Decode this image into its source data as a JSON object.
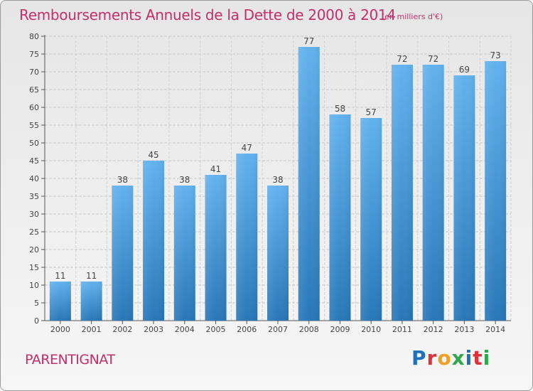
{
  "title": "Remboursements Annuels de la Dette de 2000 à 2014",
  "unit": "(en milliers d'€)",
  "place": "PARENTIGNAT",
  "logo_text": "Proxiti",
  "logo_colors": [
    "#1f6fbf",
    "#e0303a",
    "#f0a020",
    "#2ea84a",
    "#1f6fbf",
    "#e0303a",
    "#2ea84a"
  ],
  "colors": {
    "bar_light": "#5dadea",
    "bar_dark": "#2a7fc0",
    "title": "#c0306a",
    "grid": "#c8c8c8"
  },
  "chart_data": {
    "type": "bar",
    "categories": [
      "2000",
      "2001",
      "2002",
      "2003",
      "2004",
      "2005",
      "2006",
      "2007",
      "2008",
      "2009",
      "2010",
      "2011",
      "2012",
      "2013",
      "2014"
    ],
    "values": [
      11,
      11,
      38,
      45,
      38,
      41,
      47,
      38,
      77,
      58,
      57,
      72,
      72,
      69,
      73
    ],
    "title": "Remboursements Annuels de la Dette de 2000 à 2014",
    "xlabel": "",
    "ylabel": "",
    "ylim": [
      0,
      80
    ],
    "yticks": [
      0,
      5,
      10,
      15,
      20,
      25,
      30,
      35,
      40,
      45,
      50,
      55,
      60,
      65,
      70,
      75,
      80
    ],
    "grid": true,
    "data_labels": true
  }
}
